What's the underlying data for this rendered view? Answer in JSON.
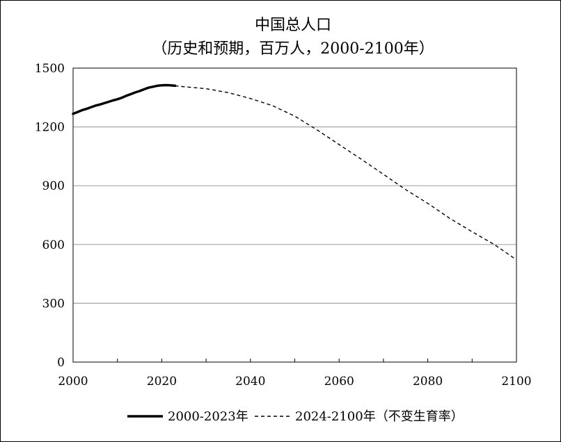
{
  "chart_data": {
    "type": "line",
    "title": "中国总人口",
    "subtitle": "（历史和预期，百万人，2000-2100年）",
    "xlabel": "",
    "ylabel": "",
    "xlim": [
      2000,
      2100
    ],
    "ylim": [
      0,
      1500
    ],
    "x_ticks": [
      2000,
      2020,
      2040,
      2060,
      2080,
      2100
    ],
    "y_ticks": [
      0,
      300,
      600,
      900,
      1200,
      1500
    ],
    "grid": "horizontal",
    "legend_position": "bottom",
    "series": [
      {
        "name": "2000-2023年",
        "style": "solid",
        "color": "#000000",
        "points": [
          [
            2000,
            1267
          ],
          [
            2001,
            1276
          ],
          [
            2002,
            1285
          ],
          [
            2003,
            1292
          ],
          [
            2004,
            1300
          ],
          [
            2005,
            1308
          ],
          [
            2006,
            1314
          ],
          [
            2007,
            1321
          ],
          [
            2008,
            1328
          ],
          [
            2009,
            1335
          ],
          [
            2010,
            1341
          ],
          [
            2011,
            1349
          ],
          [
            2012,
            1359
          ],
          [
            2013,
            1367
          ],
          [
            2014,
            1376
          ],
          [
            2015,
            1383
          ],
          [
            2016,
            1392
          ],
          [
            2017,
            1400
          ],
          [
            2018,
            1405
          ],
          [
            2019,
            1410
          ],
          [
            2020,
            1412
          ],
          [
            2021,
            1413
          ],
          [
            2022,
            1412
          ],
          [
            2023,
            1410
          ]
        ]
      },
      {
        "name": "2024-2100年（不变生育率）",
        "style": "dashed",
        "color": "#000000",
        "points": [
          [
            2023,
            1410
          ],
          [
            2025,
            1405
          ],
          [
            2030,
            1395
          ],
          [
            2035,
            1375
          ],
          [
            2040,
            1345
          ],
          [
            2045,
            1308
          ],
          [
            2050,
            1255
          ],
          [
            2055,
            1185
          ],
          [
            2060,
            1110
          ],
          [
            2065,
            1035
          ],
          [
            2070,
            958
          ],
          [
            2075,
            880
          ],
          [
            2080,
            810
          ],
          [
            2085,
            733
          ],
          [
            2090,
            665
          ],
          [
            2095,
            600
          ],
          [
            2100,
            522
          ]
        ]
      }
    ]
  }
}
